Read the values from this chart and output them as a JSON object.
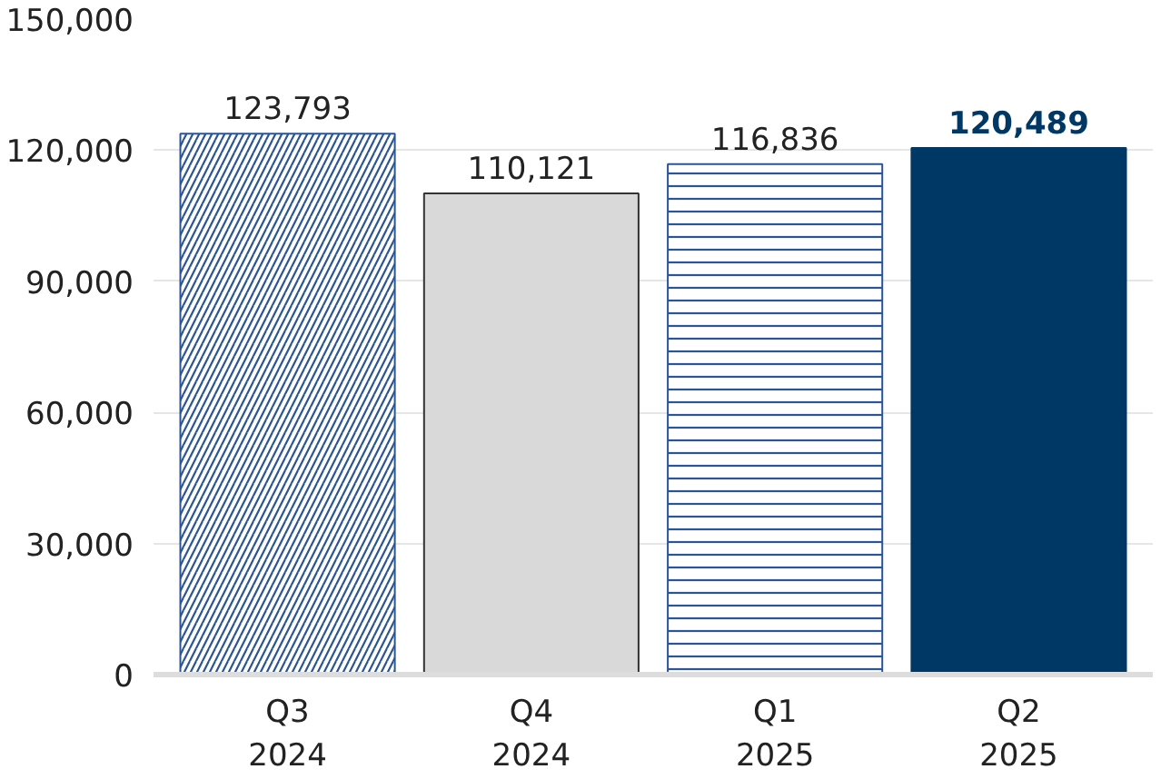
{
  "chart_data": {
    "type": "bar",
    "categories": [
      "Q3\n2024",
      "Q4\n2024",
      "Q1\n2025",
      "Q2\n2025"
    ],
    "values": [
      123793,
      110121,
      116836,
      120489
    ],
    "colors": [
      "#2a5598",
      "#d9d9d9",
      "#2a5598",
      "#003865"
    ],
    "value_labels": [
      "123,793",
      "110,121",
      "116,836",
      "120,489"
    ],
    "ylim": [
      0,
      150000
    ],
    "yticks": [
      0,
      {
        "value": 30000,
        "label": "30,000"
      },
      {
        "value": 60000,
        "label": "60,000"
      },
      {
        "value": 90000,
        "label": "90,000"
      },
      {
        "value": 120000,
        "label": "120,000"
      },
      {
        "value": 150000,
        "label": "150,000"
      }
    ],
    "grid": "y"
  }
}
